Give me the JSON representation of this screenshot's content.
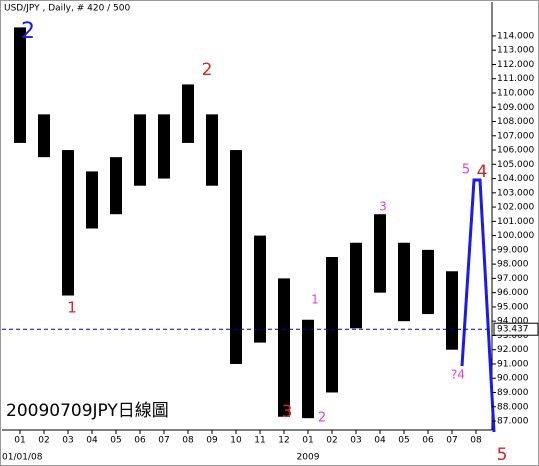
{
  "chart_data": {
    "type": "range",
    "title": "USD/JPY , Daily, # 420 / 500",
    "watermark": "20090709JPY日線圖",
    "period_labels": [
      "01/01/08",
      "2009"
    ],
    "categories": [
      "01",
      "02",
      "03",
      "04",
      "05",
      "06",
      "07",
      "08",
      "09",
      "10",
      "11",
      "12",
      "01",
      "02",
      "03",
      "04",
      "05",
      "06",
      "07",
      "08"
    ],
    "series": [
      {
        "name": "high",
        "color": "#000000",
        "values": [
          114.6,
          108.5,
          106.0,
          104.5,
          105.5,
          108.5,
          108.5,
          110.6,
          108.5,
          106.0,
          100.0,
          97.0,
          94.1,
          98.5,
          99.5,
          101.5,
          99.5,
          99.0,
          97.5,
          null
        ]
      },
      {
        "name": "low",
        "color": "#000000",
        "values": [
          106.5,
          105.5,
          95.8,
          100.5,
          101.5,
          103.5,
          104.0,
          106.5,
          103.5,
          91.0,
          92.5,
          87.3,
          87.2,
          89.0,
          93.5,
          96.0,
          94.0,
          94.5,
          92.0,
          null
        ]
      }
    ],
    "ylim": [
      86.37,
      116.38
    ],
    "yticks": [
      {
        "value": 87,
        "label": "87.000"
      },
      {
        "value": 88,
        "label": "88.000"
      },
      {
        "value": 89,
        "label": "89.000"
      },
      {
        "value": 90,
        "label": "90.000"
      },
      {
        "value": 91,
        "label": "91.000"
      },
      {
        "value": 92,
        "label": "92.000"
      },
      {
        "value": 93,
        "label": "93.000"
      },
      {
        "value": 94,
        "label": "94.000"
      },
      {
        "value": 95,
        "label": "95.000"
      },
      {
        "value": 96,
        "label": "96.000"
      },
      {
        "value": 97,
        "label": "97.000"
      },
      {
        "value": 98,
        "label": "98.000"
      },
      {
        "value": 99,
        "label": "99.000"
      },
      {
        "value": 100,
        "label": "100.000"
      },
      {
        "value": 101,
        "label": "101.000"
      },
      {
        "value": 102,
        "label": "102.000"
      },
      {
        "value": 103,
        "label": "103.000"
      },
      {
        "value": 104,
        "label": "104.000"
      },
      {
        "value": 105,
        "label": "105.000"
      },
      {
        "value": 106,
        "label": "106.000"
      },
      {
        "value": 107,
        "label": "107.000"
      },
      {
        "value": 108,
        "label": "108.000"
      },
      {
        "value": 109,
        "label": "109.000"
      },
      {
        "value": 110,
        "label": "110.000"
      },
      {
        "value": 111,
        "label": "111.000"
      },
      {
        "value": 112,
        "label": "112.000"
      },
      {
        "value": 113,
        "label": "113.000"
      },
      {
        "value": 114,
        "label": "114.000"
      }
    ],
    "ref_line": {
      "value": 93.437,
      "color": "#0000cc"
    },
    "annotations": [
      {
        "text": "2",
        "color": "#1a1aee"
      },
      {
        "text": "1",
        "color": "#e02020"
      },
      {
        "text": "2",
        "color": "#e02020"
      },
      {
        "text": "3",
        "color": "#e02020"
      },
      {
        "text": "1",
        "color": "#e040e0"
      },
      {
        "text": "2",
        "color": "#e040e0"
      },
      {
        "text": "3",
        "color": "#e040e0"
      },
      {
        "text": "5",
        "color": "#e040e0"
      },
      {
        "text": "4",
        "color": "#e02020"
      },
      {
        "text": "?4",
        "color": "#e040e0"
      },
      {
        "text": "5",
        "color": "#e02020"
      }
    ]
  }
}
